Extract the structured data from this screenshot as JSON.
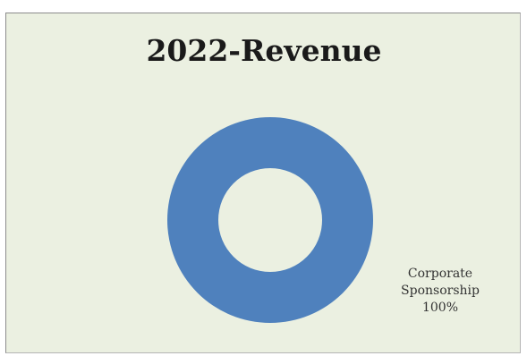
{
  "chart_data": {
    "type": "pie",
    "variant": "doughnut",
    "title": "2022-Revenue",
    "categories": [
      "Corporate Sponsorship"
    ],
    "values": [
      100
    ],
    "series": [
      {
        "name": "Corporate Sponsorship",
        "values": [
          100
        ],
        "color": "#4f81bd"
      }
    ],
    "data_labels": [
      {
        "category_line1": "Corporate",
        "category_line2": "Sponsorship",
        "percent": "100%"
      }
    ],
    "legend": "none",
    "background_color": "#ebf0e1"
  }
}
